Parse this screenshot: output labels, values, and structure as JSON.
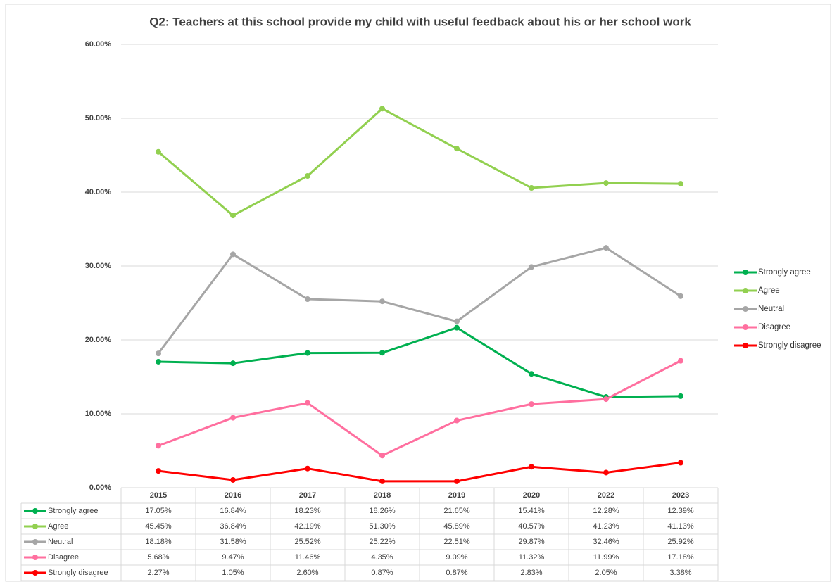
{
  "chart_data": {
    "type": "line",
    "title": "Q2: Teachers at this school provide my child with useful feedback about his or her school work",
    "categories": [
      "2015",
      "2016",
      "2017",
      "2018",
      "2019",
      "2020",
      "2022",
      "2023"
    ],
    "series": [
      {
        "name": "Strongly agree",
        "color": "#00b050",
        "values": [
          17.05,
          16.84,
          18.23,
          18.26,
          21.65,
          15.41,
          12.28,
          12.39
        ],
        "value_labels": [
          "17.05%",
          "16.84%",
          "18.23%",
          "18.26%",
          "21.65%",
          "15.41%",
          "12.28%",
          "12.39%"
        ]
      },
      {
        "name": "Agree",
        "color": "#92d050",
        "values": [
          45.45,
          36.84,
          42.19,
          51.3,
          45.89,
          40.57,
          41.23,
          41.13
        ],
        "value_labels": [
          "45.45%",
          "36.84%",
          "42.19%",
          "51.30%",
          "45.89%",
          "40.57%",
          "41.23%",
          "41.13%"
        ]
      },
      {
        "name": "Neutral",
        "color": "#a6a6a6",
        "values": [
          18.18,
          31.58,
          25.52,
          25.22,
          22.51,
          29.87,
          32.46,
          25.92
        ],
        "value_labels": [
          "18.18%",
          "31.58%",
          "25.52%",
          "25.22%",
          "22.51%",
          "29.87%",
          "32.46%",
          "25.92%"
        ]
      },
      {
        "name": "Disagree",
        "color": "#ff6f9f",
        "values": [
          5.68,
          9.47,
          11.46,
          4.35,
          9.09,
          11.32,
          11.99,
          17.18
        ],
        "value_labels": [
          "5.68%",
          "9.47%",
          "11.46%",
          "4.35%",
          "9.09%",
          "11.32%",
          "11.99%",
          "17.18%"
        ]
      },
      {
        "name": "Strongly disagree",
        "color": "#ff0000",
        "values": [
          2.27,
          1.05,
          2.6,
          0.87,
          0.87,
          2.83,
          2.05,
          3.38
        ],
        "value_labels": [
          "2.27%",
          "1.05%",
          "2.60%",
          "0.87%",
          "0.87%",
          "2.83%",
          "2.05%",
          "3.38%"
        ]
      }
    ],
    "ylim": [
      0,
      60
    ],
    "yticks": [
      {
        "value": 0,
        "label": "0.00%"
      },
      {
        "value": 10,
        "label": "10.00%"
      },
      {
        "value": 20,
        "label": "20.00%"
      },
      {
        "value": 30,
        "label": "30.00%"
      },
      {
        "value": 40,
        "label": "40.00%"
      },
      {
        "value": 50,
        "label": "50.00%"
      },
      {
        "value": 60,
        "label": "60.00%"
      }
    ],
    "grid": true,
    "legend": "right",
    "data_table": true
  }
}
